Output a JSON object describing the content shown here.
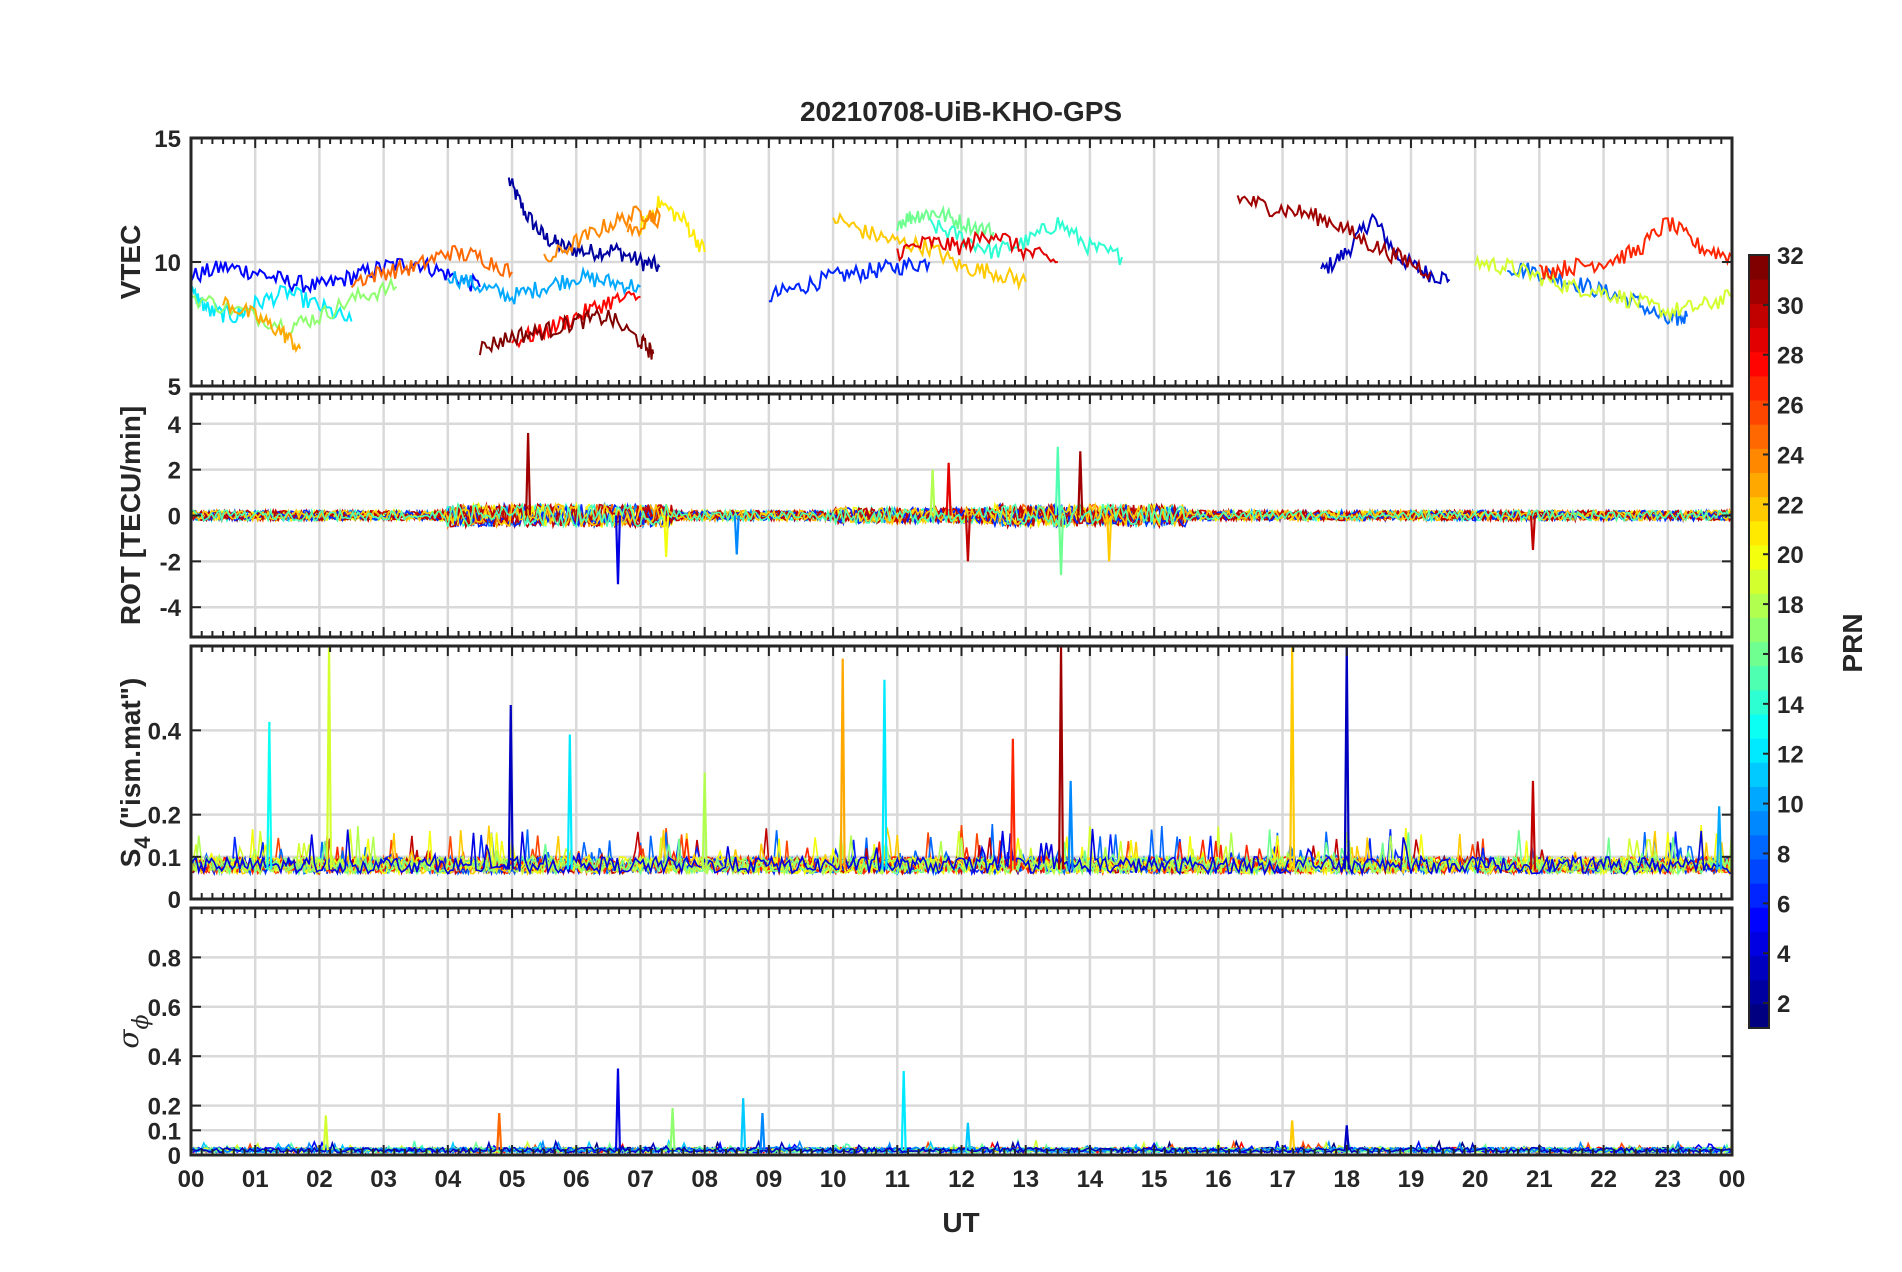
{
  "title": "20210708-UiB-KHO-GPS",
  "xlabel": "UT",
  "x_ticks": [
    "00",
    "01",
    "02",
    "03",
    "04",
    "05",
    "06",
    "07",
    "08",
    "09",
    "10",
    "11",
    "12",
    "13",
    "14",
    "15",
    "16",
    "17",
    "18",
    "19",
    "20",
    "21",
    "22",
    "23",
    "00"
  ],
  "colorbar": {
    "label": "PRN",
    "colormap": "jet",
    "range": [
      1,
      32
    ],
    "ticks": [
      "2",
      "4",
      "6",
      "8",
      "10",
      "12",
      "14",
      "16",
      "18",
      "20",
      "22",
      "24",
      "26",
      "28",
      "30",
      "32"
    ]
  },
  "panels": [
    {
      "id": "vtec",
      "ylabel": "VTEC",
      "ylim": [
        5,
        15
      ],
      "yticks": [
        "5",
        "10",
        "15"
      ]
    },
    {
      "id": "rot",
      "ylabel": "ROT [TECU/min]",
      "ylim": [
        -5.3,
        5.3
      ],
      "yticks": [
        "-4",
        "-2",
        "0",
        "2",
        "4"
      ]
    },
    {
      "id": "s4",
      "ylabel_main": "S",
      "ylabel_sub": "4",
      "ylabel_rest": " (\"ism.mat\")",
      "ylim": [
        0,
        0.6
      ],
      "yticks": [
        "0",
        "0.1",
        "0.2",
        "0.4"
      ]
    },
    {
      "id": "sigphi",
      "ylabel_main": "σ",
      "ylabel_sub": "ϕ",
      "ylim": [
        0,
        1
      ],
      "yticks": [
        "0",
        "0.1",
        "0.2",
        "0.4",
        "0.6",
        "0.8"
      ]
    }
  ],
  "chart_data": [
    {
      "type": "line",
      "panel": "vtec",
      "xlabel": "UT",
      "ylabel": "VTEC",
      "xlim": [
        0,
        24
      ],
      "ylim": [
        5,
        15
      ],
      "grid": true,
      "series": [
        {
          "prn": 2,
          "x": [
            4.95,
            5.2,
            5.5,
            5.8,
            6.2,
            6.6,
            7.0,
            7.3
          ],
          "y": [
            13.3,
            12.0,
            11.0,
            10.6,
            10.4,
            10.5,
            10.0,
            9.8
          ]
        },
        {
          "prn": 3,
          "x": [
            17.6,
            18.0,
            18.4,
            18.8,
            19.2,
            19.6
          ],
          "y": [
            9.6,
            10.4,
            11.8,
            10.2,
            9.6,
            9.3
          ]
        },
        {
          "prn": 5,
          "x": [
            0.0,
            0.5,
            1.0,
            1.5,
            2.0,
            2.5,
            3.0,
            3.5,
            4.0,
            4.5
          ],
          "y": [
            9.4,
            9.8,
            9.6,
            9.2,
            9.0,
            9.4,
            9.8,
            10.0,
            9.5,
            9.0
          ]
        },
        {
          "prn": 6,
          "x": [
            9.0,
            9.5,
            10.0,
            10.5,
            11.0,
            11.5
          ],
          "y": [
            8.6,
            9.0,
            9.4,
            9.6,
            9.8,
            10.0
          ]
        },
        {
          "prn": 8,
          "x": [
            20.5,
            21.0,
            21.5,
            22.0,
            22.5,
            23.0,
            23.3
          ],
          "y": [
            9.8,
            9.6,
            9.2,
            8.8,
            8.4,
            7.6,
            7.8
          ]
        },
        {
          "prn": 10,
          "x": [
            4.0,
            4.5,
            5.0,
            5.5,
            6.0,
            6.5,
            7.0
          ],
          "y": [
            9.5,
            9.0,
            8.6,
            9.0,
            9.4,
            9.2,
            9.0
          ]
        },
        {
          "prn": 12,
          "x": [
            0.0,
            0.3,
            0.7,
            1.0,
            1.5,
            2.0,
            2.5
          ],
          "y": [
            8.8,
            8.0,
            7.8,
            8.3,
            8.8,
            8.2,
            7.6
          ]
        },
        {
          "prn": 14,
          "x": [
            11.5,
            12.0,
            12.5,
            13.0,
            13.5,
            14.0,
            14.5
          ],
          "y": [
            11.5,
            11.0,
            10.4,
            10.8,
            11.6,
            10.6,
            10.2
          ]
        },
        {
          "prn": 16,
          "x": [
            11.0,
            11.3,
            11.6,
            12.0,
            12.5
          ],
          "y": [
            11.6,
            11.9,
            12.0,
            11.6,
            11.2
          ]
        },
        {
          "prn": 17,
          "x": [
            0.0,
            0.8,
            1.5,
            2.0,
            2.6,
            3.2
          ],
          "y": [
            8.6,
            8.0,
            7.4,
            7.8,
            8.6,
            9.0
          ]
        },
        {
          "prn": 19,
          "x": [
            20.0,
            20.5,
            21.0,
            21.5,
            22.0,
            22.5,
            23.0,
            23.5,
            24.0
          ],
          "y": [
            10.0,
            9.8,
            9.4,
            9.0,
            8.8,
            8.4,
            8.0,
            8.2,
            8.6
          ]
        },
        {
          "prn": 21,
          "x": [
            7.0,
            7.3,
            7.7,
            8.0
          ],
          "y": [
            11.4,
            12.4,
            11.6,
            10.4
          ]
        },
        {
          "prn": 22,
          "x": [
            10.0,
            10.5,
            11.0,
            11.5,
            12.0,
            12.5,
            13.0
          ],
          "y": [
            11.8,
            11.2,
            10.8,
            10.6,
            9.8,
            9.6,
            9.2
          ]
        },
        {
          "prn": 23,
          "x": [
            0.5,
            1.0,
            1.4,
            1.7
          ],
          "y": [
            8.4,
            7.8,
            7.2,
            6.5
          ]
        },
        {
          "prn": 24,
          "x": [
            5.5,
            6.0,
            6.5,
            7.0,
            7.3,
            6.8
          ],
          "y": [
            10.0,
            10.8,
            11.5,
            12.0,
            11.8,
            11.2
          ]
        },
        {
          "prn": 25,
          "x": [
            2.5,
            3.0,
            3.5,
            4.0,
            4.5,
            5.0
          ],
          "y": [
            9.2,
            9.6,
            9.8,
            10.4,
            10.2,
            9.6
          ]
        },
        {
          "prn": 27,
          "x": [
            21.0,
            21.5,
            22.0,
            22.5,
            23.0,
            23.5,
            24.0
          ],
          "y": [
            9.6,
            9.8,
            10.0,
            10.4,
            11.6,
            10.6,
            10.2
          ]
        },
        {
          "prn": 28,
          "x": [
            5.0,
            5.5,
            6.0,
            6.5,
            7.0
          ],
          "y": [
            6.8,
            7.2,
            7.8,
            8.4,
            8.6
          ]
        },
        {
          "prn": 29,
          "x": [
            11.0,
            11.5,
            12.0,
            12.5,
            13.0,
            13.5
          ],
          "y": [
            10.4,
            10.8,
            10.6,
            11.2,
            10.4,
            10.0
          ]
        },
        {
          "prn": 31,
          "x": [
            16.3,
            16.8,
            17.3,
            17.8,
            18.3,
            18.8,
            19.3
          ],
          "y": [
            12.6,
            12.2,
            12.0,
            11.6,
            10.8,
            10.2,
            9.6
          ]
        },
        {
          "prn": 32,
          "x": [
            4.5,
            5.0,
            5.5,
            6.0,
            6.5,
            7.0,
            7.2
          ],
          "y": [
            6.5,
            7.0,
            7.2,
            7.6,
            7.8,
            6.8,
            6.3
          ]
        }
      ]
    },
    {
      "type": "line",
      "panel": "rot",
      "xlabel": "UT",
      "ylabel": "ROT [TECU/min]",
      "xlim": [
        0,
        24
      ],
      "ylim": [
        -5.3,
        5.3
      ],
      "grid": true,
      "spikes": [
        {
          "x": 5.25,
          "y": 3.6,
          "prn": 31
        },
        {
          "x": 6.65,
          "y": -3.0,
          "prn": 4
        },
        {
          "x": 11.8,
          "y": 2.3,
          "prn": 29
        },
        {
          "x": 11.55,
          "y": 2.0,
          "prn": 18
        },
        {
          "x": 13.5,
          "y": 3.0,
          "prn": 15
        },
        {
          "x": 13.85,
          "y": 2.8,
          "prn": 31
        },
        {
          "x": 13.55,
          "y": -2.6,
          "prn": 16
        },
        {
          "x": 14.3,
          "y": -2.0,
          "prn": 22
        },
        {
          "x": 12.1,
          "y": -2.0,
          "prn": 30
        },
        {
          "x": 8.5,
          "y": -1.7,
          "prn": 9
        },
        {
          "x": 7.4,
          "y": -1.8,
          "prn": 20
        },
        {
          "x": 20.9,
          "y": -1.5,
          "prn": 30
        }
      ]
    },
    {
      "type": "line",
      "panel": "s4",
      "ylabel": "S4 (\"ism.mat\")",
      "xlim": [
        0,
        24
      ],
      "ylim": [
        0,
        0.6
      ],
      "grid": true,
      "spikes": [
        {
          "x": 1.22,
          "y": 0.42,
          "prn": 13
        },
        {
          "x": 2.15,
          "y": 0.6,
          "prn": 19
        },
        {
          "x": 4.98,
          "y": 0.46,
          "prn": 3
        },
        {
          "x": 5.9,
          "y": 0.39,
          "prn": 12
        },
        {
          "x": 8.0,
          "y": 0.3,
          "prn": 18
        },
        {
          "x": 10.15,
          "y": 0.57,
          "prn": 23
        },
        {
          "x": 10.8,
          "y": 0.52,
          "prn": 12
        },
        {
          "x": 12.8,
          "y": 0.38,
          "prn": 27
        },
        {
          "x": 13.55,
          "y": 0.6,
          "prn": 31
        },
        {
          "x": 13.7,
          "y": 0.28,
          "prn": 9
        },
        {
          "x": 17.15,
          "y": 0.6,
          "prn": 22
        },
        {
          "x": 18.0,
          "y": 0.6,
          "prn": 3
        },
        {
          "x": 20.9,
          "y": 0.28,
          "prn": 30
        },
        {
          "x": 23.8,
          "y": 0.22,
          "prn": 10
        }
      ]
    },
    {
      "type": "line",
      "panel": "sigphi",
      "ylabel": "σϕ",
      "xlim": [
        0,
        24
      ],
      "ylim": [
        0,
        1
      ],
      "grid": true,
      "spikes": [
        {
          "x": 6.65,
          "y": 0.35,
          "prn": 4
        },
        {
          "x": 7.5,
          "y": 0.19,
          "prn": 17
        },
        {
          "x": 8.6,
          "y": 0.23,
          "prn": 11
        },
        {
          "x": 8.9,
          "y": 0.17,
          "prn": 9
        },
        {
          "x": 11.1,
          "y": 0.34,
          "prn": 12
        },
        {
          "x": 4.8,
          "y": 0.17,
          "prn": 25
        },
        {
          "x": 2.1,
          "y": 0.16,
          "prn": 19
        },
        {
          "x": 17.15,
          "y": 0.14,
          "prn": 22
        },
        {
          "x": 18.0,
          "y": 0.12,
          "prn": 3
        },
        {
          "x": 12.1,
          "y": 0.13,
          "prn": 11
        }
      ]
    }
  ]
}
